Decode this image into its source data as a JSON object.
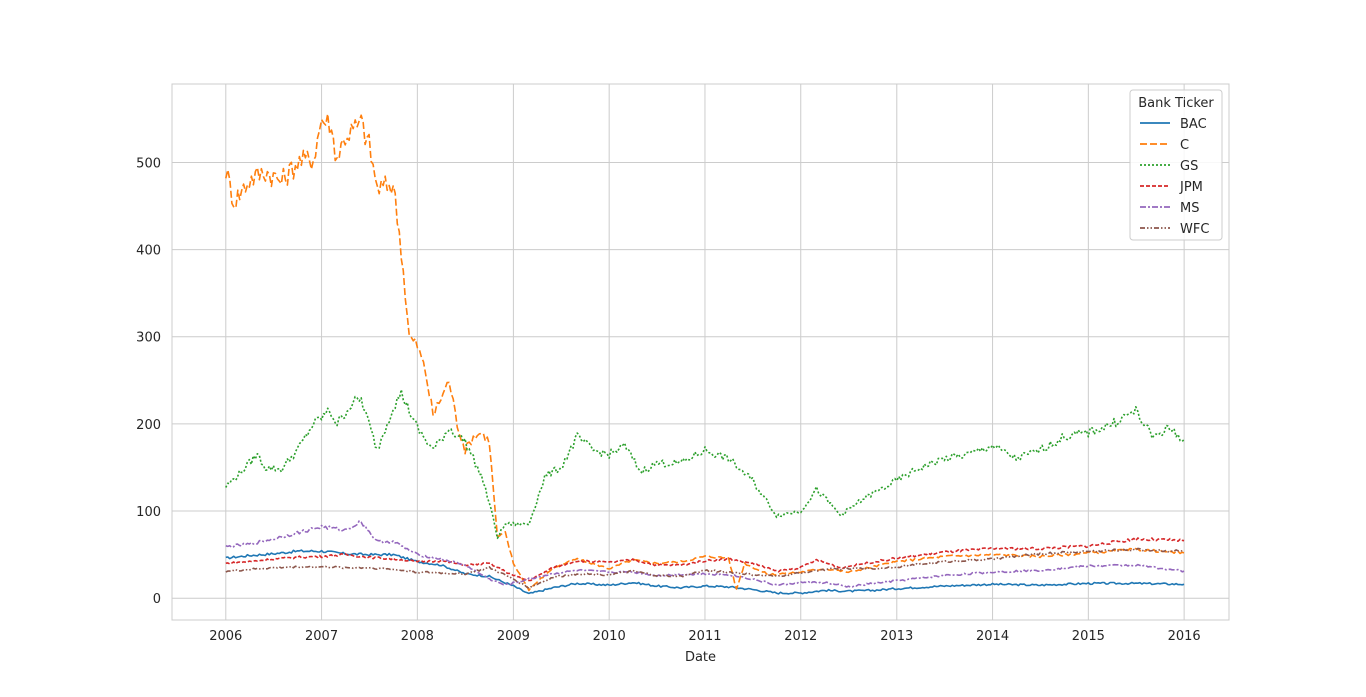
{
  "chart_data": {
    "type": "line",
    "title": "",
    "xlabel": "Date",
    "ylabel": "",
    "xlim": [
      "2005-06-10",
      "2016-06-20"
    ],
    "ylim": [
      -25,
      590
    ],
    "grid": true,
    "legend": {
      "title": "Bank Ticker",
      "placement": "top-right"
    },
    "x_ticks": [
      "2006",
      "2007",
      "2008",
      "2009",
      "2010",
      "2011",
      "2012",
      "2013",
      "2014",
      "2015",
      "2016"
    ],
    "y_ticks": [
      0,
      100,
      200,
      300,
      400,
      500
    ],
    "series": [
      {
        "name": "BAC",
        "color": "#1f77b4",
        "dash": "solid",
        "points": [
          [
            "2006-01-01",
            46
          ],
          [
            "2006-04-01",
            49
          ],
          [
            "2006-07-01",
            51
          ],
          [
            "2006-10-01",
            54
          ],
          [
            "2007-01-01",
            54
          ],
          [
            "2007-04-01",
            51
          ],
          [
            "2007-07-01",
            50
          ],
          [
            "2007-10-01",
            50
          ],
          [
            "2008-01-01",
            42
          ],
          [
            "2008-04-01",
            38
          ],
          [
            "2008-07-01",
            28
          ],
          [
            "2008-10-01",
            25
          ],
          [
            "2009-01-01",
            14
          ],
          [
            "2009-03-01",
            5
          ],
          [
            "2009-06-01",
            12
          ],
          [
            "2009-09-01",
            17
          ],
          [
            "2010-01-01",
            15
          ],
          [
            "2010-04-01",
            18
          ],
          [
            "2010-07-01",
            14
          ],
          [
            "2010-10-01",
            12
          ],
          [
            "2011-01-01",
            14
          ],
          [
            "2011-04-01",
            13
          ],
          [
            "2011-07-01",
            10
          ],
          [
            "2011-10-01",
            6
          ],
          [
            "2012-01-01",
            6
          ],
          [
            "2012-04-01",
            9
          ],
          [
            "2012-07-01",
            8
          ],
          [
            "2012-10-01",
            9
          ],
          [
            "2013-01-01",
            11
          ],
          [
            "2013-07-01",
            14
          ],
          [
            "2014-01-01",
            16
          ],
          [
            "2014-07-01",
            15
          ],
          [
            "2015-01-01",
            17
          ],
          [
            "2015-07-01",
            17
          ],
          [
            "2016-01-01",
            16
          ]
        ]
      },
      {
        "name": "C",
        "color": "#ff7f0e",
        "dash": "dashed",
        "points": [
          [
            "2006-01-01",
            492
          ],
          [
            "2006-02-01",
            455
          ],
          [
            "2006-04-01",
            480
          ],
          [
            "2006-06-01",
            490
          ],
          [
            "2006-08-01",
            478
          ],
          [
            "2006-10-01",
            500
          ],
          [
            "2006-12-01",
            505
          ],
          [
            "2007-01-01",
            550
          ],
          [
            "2007-02-01",
            545
          ],
          [
            "2007-03-01",
            505
          ],
          [
            "2007-04-01",
            530
          ],
          [
            "2007-06-01",
            545
          ],
          [
            "2007-07-01",
            520
          ],
          [
            "2007-08-01",
            470
          ],
          [
            "2007-10-01",
            475
          ],
          [
            "2007-11-01",
            400
          ],
          [
            "2007-12-01",
            300
          ],
          [
            "2008-01-01",
            290
          ],
          [
            "2008-02-01",
            260
          ],
          [
            "2008-03-01",
            210
          ],
          [
            "2008-05-01",
            250
          ],
          [
            "2008-06-01",
            200
          ],
          [
            "2008-07-01",
            170
          ],
          [
            "2008-08-01",
            185
          ],
          [
            "2008-09-01",
            190
          ],
          [
            "2008-10-01",
            180
          ],
          [
            "2008-11-01",
            70
          ],
          [
            "2008-12-01",
            75
          ],
          [
            "2009-01-01",
            40
          ],
          [
            "2009-03-01",
            10
          ],
          [
            "2009-06-01",
            35
          ],
          [
            "2009-09-01",
            45
          ],
          [
            "2010-01-01",
            34
          ],
          [
            "2010-04-01",
            44
          ],
          [
            "2010-07-01",
            40
          ],
          [
            "2010-10-01",
            42
          ],
          [
            "2011-01-01",
            48
          ],
          [
            "2011-04-01",
            46
          ],
          [
            "2011-05-01",
            10
          ],
          [
            "2011-06-01",
            40
          ],
          [
            "2011-09-01",
            27
          ],
          [
            "2012-01-01",
            30
          ],
          [
            "2012-04-01",
            34
          ],
          [
            "2012-07-01",
            30
          ],
          [
            "2013-01-01",
            42
          ],
          [
            "2013-07-01",
            48
          ],
          [
            "2014-01-01",
            50
          ],
          [
            "2014-07-01",
            48
          ],
          [
            "2015-01-01",
            52
          ],
          [
            "2015-07-01",
            56
          ],
          [
            "2016-01-01",
            52
          ]
        ]
      },
      {
        "name": "GS",
        "color": "#2ca02c",
        "dash": "dotted",
        "points": [
          [
            "2006-01-01",
            128
          ],
          [
            "2006-03-01",
            145
          ],
          [
            "2006-05-01",
            165
          ],
          [
            "2006-06-01",
            150
          ],
          [
            "2006-08-01",
            148
          ],
          [
            "2006-10-01",
            170
          ],
          [
            "2006-12-01",
            200
          ],
          [
            "2007-02-01",
            215
          ],
          [
            "2007-03-01",
            200
          ],
          [
            "2007-05-01",
            225
          ],
          [
            "2007-06-01",
            228
          ],
          [
            "2007-08-01",
            170
          ],
          [
            "2007-10-01",
            220
          ],
          [
            "2007-11-01",
            235
          ],
          [
            "2008-01-01",
            195
          ],
          [
            "2008-03-01",
            170
          ],
          [
            "2008-05-01",
            195
          ],
          [
            "2008-07-01",
            180
          ],
          [
            "2008-09-01",
            140
          ],
          [
            "2008-10-01",
            110
          ],
          [
            "2008-11-01",
            70
          ],
          [
            "2008-12-01",
            85
          ],
          [
            "2009-03-01",
            85
          ],
          [
            "2009-05-01",
            140
          ],
          [
            "2009-07-01",
            150
          ],
          [
            "2009-09-01",
            185
          ],
          [
            "2009-11-01",
            170
          ],
          [
            "2010-01-01",
            165
          ],
          [
            "2010-03-01",
            175
          ],
          [
            "2010-05-01",
            145
          ],
          [
            "2010-07-01",
            155
          ],
          [
            "2010-10-01",
            155
          ],
          [
            "2011-01-01",
            170
          ],
          [
            "2011-04-01",
            160
          ],
          [
            "2011-07-01",
            135
          ],
          [
            "2011-10-01",
            95
          ],
          [
            "2012-01-01",
            100
          ],
          [
            "2012-03-01",
            125
          ],
          [
            "2012-06-01",
            95
          ],
          [
            "2012-09-01",
            115
          ],
          [
            "2013-01-01",
            135
          ],
          [
            "2013-04-01",
            150
          ],
          [
            "2013-07-01",
            160
          ],
          [
            "2013-10-01",
            165
          ],
          [
            "2014-01-01",
            175
          ],
          [
            "2014-04-01",
            160
          ],
          [
            "2014-07-01",
            170
          ],
          [
            "2014-10-01",
            185
          ],
          [
            "2015-01-01",
            190
          ],
          [
            "2015-04-01",
            200
          ],
          [
            "2015-07-01",
            215
          ],
          [
            "2015-09-01",
            185
          ],
          [
            "2015-11-01",
            195
          ],
          [
            "2016-01-01",
            182
          ]
        ]
      },
      {
        "name": "JPM",
        "color": "#d62728",
        "dash": "densely-dashed",
        "points": [
          [
            "2006-01-01",
            40
          ],
          [
            "2006-04-01",
            42
          ],
          [
            "2006-07-01",
            45
          ],
          [
            "2006-10-01",
            47
          ],
          [
            "2007-01-01",
            48
          ],
          [
            "2007-04-01",
            50
          ],
          [
            "2007-07-01",
            47
          ],
          [
            "2007-10-01",
            45
          ],
          [
            "2008-01-01",
            42
          ],
          [
            "2008-04-01",
            43
          ],
          [
            "2008-07-01",
            38
          ],
          [
            "2008-10-01",
            40
          ],
          [
            "2009-01-01",
            26
          ],
          [
            "2009-03-01",
            20
          ],
          [
            "2009-06-01",
            35
          ],
          [
            "2009-09-01",
            43
          ],
          [
            "2010-01-01",
            41
          ],
          [
            "2010-04-01",
            44
          ],
          [
            "2010-07-01",
            38
          ],
          [
            "2010-10-01",
            38
          ],
          [
            "2011-01-01",
            43
          ],
          [
            "2011-04-01",
            45
          ],
          [
            "2011-07-01",
            40
          ],
          [
            "2011-10-01",
            31
          ],
          [
            "2012-01-01",
            35
          ],
          [
            "2012-03-01",
            44
          ],
          [
            "2012-06-01",
            35
          ],
          [
            "2012-09-01",
            40
          ],
          [
            "2013-01-01",
            46
          ],
          [
            "2013-07-01",
            53
          ],
          [
            "2014-01-01",
            57
          ],
          [
            "2014-07-01",
            57
          ],
          [
            "2015-01-01",
            60
          ],
          [
            "2015-07-01",
            68
          ],
          [
            "2016-01-01",
            66
          ]
        ]
      },
      {
        "name": "MS",
        "color": "#9467bd",
        "dash": "dash-dot",
        "points": [
          [
            "2006-01-01",
            59
          ],
          [
            "2006-04-01",
            62
          ],
          [
            "2006-07-01",
            68
          ],
          [
            "2006-10-01",
            75
          ],
          [
            "2007-01-01",
            82
          ],
          [
            "2007-04-01",
            78
          ],
          [
            "2007-06-01",
            88
          ],
          [
            "2007-08-01",
            65
          ],
          [
            "2007-10-01",
            65
          ],
          [
            "2008-01-01",
            50
          ],
          [
            "2008-04-01",
            45
          ],
          [
            "2008-07-01",
            38
          ],
          [
            "2008-10-01",
            22
          ],
          [
            "2008-12-01",
            15
          ],
          [
            "2009-03-01",
            22
          ],
          [
            "2009-06-01",
            28
          ],
          [
            "2009-09-01",
            32
          ],
          [
            "2010-01-01",
            30
          ],
          [
            "2010-04-01",
            30
          ],
          [
            "2010-07-01",
            26
          ],
          [
            "2011-01-01",
            28
          ],
          [
            "2011-04-01",
            27
          ],
          [
            "2011-07-01",
            22
          ],
          [
            "2011-10-01",
            15
          ],
          [
            "2012-01-01",
            18
          ],
          [
            "2012-04-01",
            18
          ],
          [
            "2012-07-01",
            13
          ],
          [
            "2012-10-01",
            17
          ],
          [
            "2013-01-01",
            20
          ],
          [
            "2013-07-01",
            26
          ],
          [
            "2014-01-01",
            30
          ],
          [
            "2014-07-01",
            32
          ],
          [
            "2015-01-01",
            37
          ],
          [
            "2015-07-01",
            38
          ],
          [
            "2016-01-01",
            31
          ]
        ]
      },
      {
        "name": "WFC",
        "color": "#8c564b",
        "dash": "dash-dot-dot",
        "points": [
          [
            "2006-01-01",
            31
          ],
          [
            "2006-04-01",
            33
          ],
          [
            "2006-07-01",
            35
          ],
          [
            "2006-10-01",
            36
          ],
          [
            "2007-01-01",
            36
          ],
          [
            "2007-04-01",
            35
          ],
          [
            "2007-07-01",
            35
          ],
          [
            "2007-10-01",
            33
          ],
          [
            "2008-01-01",
            30
          ],
          [
            "2008-04-01",
            29
          ],
          [
            "2008-07-01",
            28
          ],
          [
            "2008-10-01",
            35
          ],
          [
            "2009-01-01",
            22
          ],
          [
            "2009-03-01",
            12
          ],
          [
            "2009-06-01",
            24
          ],
          [
            "2009-09-01",
            28
          ],
          [
            "2010-01-01",
            27
          ],
          [
            "2010-04-01",
            31
          ],
          [
            "2010-07-01",
            26
          ],
          [
            "2010-10-01",
            25
          ],
          [
            "2011-01-01",
            32
          ],
          [
            "2011-04-01",
            30
          ],
          [
            "2011-07-01",
            27
          ],
          [
            "2011-10-01",
            25
          ],
          [
            "2012-01-01",
            29
          ],
          [
            "2012-04-01",
            33
          ],
          [
            "2012-07-01",
            34
          ],
          [
            "2012-10-01",
            34
          ],
          [
            "2013-01-01",
            36
          ],
          [
            "2013-07-01",
            42
          ],
          [
            "2014-01-01",
            45
          ],
          [
            "2014-07-01",
            51
          ],
          [
            "2015-01-01",
            54
          ],
          [
            "2015-07-01",
            56
          ],
          [
            "2016-01-01",
            54
          ]
        ]
      }
    ]
  }
}
